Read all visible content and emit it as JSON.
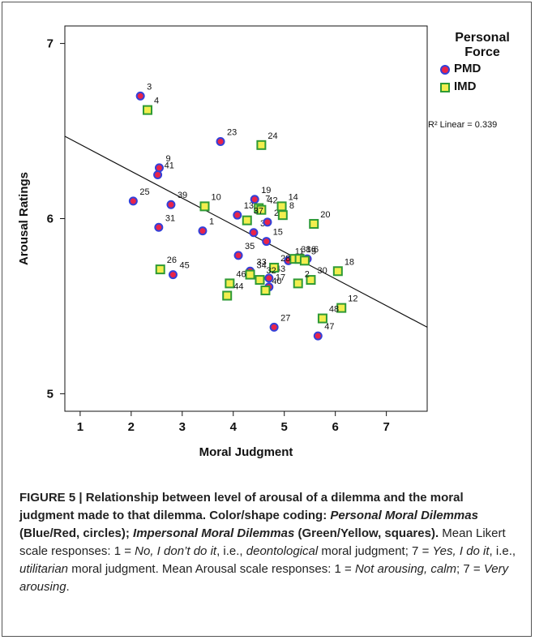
{
  "chart_data": {
    "type": "scatter",
    "xlabel": "Moral Judgment",
    "ylabel": "Arousal Ratings",
    "xlim": [
      0.7,
      7.8
    ],
    "ylim": [
      4.9,
      7.1
    ],
    "x_ticks": [
      "1",
      "2",
      "3",
      "4",
      "5",
      "6",
      "7"
    ],
    "y_ticks": [
      "5",
      "6",
      "7"
    ],
    "grid": false,
    "legend": {
      "title": "Personal Force",
      "position": "right"
    },
    "fit_label": "R² Linear = 0.339",
    "fit_line": {
      "x": [
        0.7,
        7.8
      ],
      "y": [
        6.47,
        5.38
      ]
    },
    "series": [
      {
        "name": "PMD",
        "marker": "circle",
        "color_fill": "#e8244a",
        "color_edge": "#3340d9",
        "points": [
          {
            "id": "3",
            "x": 2.18,
            "y": 6.7
          },
          {
            "id": "9",
            "x": 2.55,
            "y": 6.29
          },
          {
            "id": "41",
            "x": 2.52,
            "y": 6.25
          },
          {
            "id": "39",
            "x": 2.78,
            "y": 6.08
          },
          {
            "id": "25",
            "x": 2.04,
            "y": 6.1
          },
          {
            "id": "31",
            "x": 2.54,
            "y": 5.95
          },
          {
            "id": "45",
            "x": 2.82,
            "y": 5.68
          },
          {
            "id": "1",
            "x": 3.4,
            "y": 5.93
          },
          {
            "id": "23",
            "x": 3.75,
            "y": 6.44
          },
          {
            "id": "13",
            "x": 4.08,
            "y": 6.02
          },
          {
            "id": "19",
            "x": 4.42,
            "y": 6.11
          },
          {
            "id": "36",
            "x": 4.4,
            "y": 5.92
          },
          {
            "id": "29",
            "x": 4.67,
            "y": 5.98
          },
          {
            "id": "15",
            "x": 4.65,
            "y": 5.87
          },
          {
            "id": "35",
            "x": 4.1,
            "y": 5.79
          },
          {
            "id": "33",
            "x": 4.33,
            "y": 5.7
          },
          {
            "id": "43",
            "x": 4.7,
            "y": 5.66
          },
          {
            "id": "17",
            "x": 4.7,
            "y": 5.61
          },
          {
            "id": "11",
            "x": 5.08,
            "y": 5.76
          },
          {
            "id": "27",
            "x": 4.8,
            "y": 5.38
          },
          {
            "id": "6",
            "x": 5.45,
            "y": 5.77
          },
          {
            "id": "47",
            "x": 5.66,
            "y": 5.33
          }
        ]
      },
      {
        "name": "IMD",
        "marker": "square",
        "color_fill": "#f2ee4e",
        "color_edge": "#2e9a35",
        "points": [
          {
            "id": "4",
            "x": 2.32,
            "y": 6.62
          },
          {
            "id": "24",
            "x": 4.55,
            "y": 6.42
          },
          {
            "id": "10",
            "x": 3.44,
            "y": 6.07
          },
          {
            "id": "7",
            "x": 4.5,
            "y": 6.06
          },
          {
            "id": "42",
            "x": 4.55,
            "y": 6.05
          },
          {
            "id": "14",
            "x": 4.95,
            "y": 6.07
          },
          {
            "id": "8",
            "x": 4.97,
            "y": 6.02
          },
          {
            "id": "37",
            "x": 4.27,
            "y": 5.99
          },
          {
            "id": "20",
            "x": 5.58,
            "y": 5.97
          },
          {
            "id": "26",
            "x": 2.57,
            "y": 5.71
          },
          {
            "id": "38",
            "x": 5.2,
            "y": 5.77
          },
          {
            "id": "16",
            "x": 5.3,
            "y": 5.77
          },
          {
            "id": "30",
            "x": 5.52,
            "y": 5.65
          },
          {
            "id": "5",
            "x": 5.4,
            "y": 5.76
          },
          {
            "id": "28",
            "x": 4.8,
            "y": 5.72
          },
          {
            "id": "34",
            "x": 4.33,
            "y": 5.68
          },
          {
            "id": "32",
            "x": 4.52,
            "y": 5.65
          },
          {
            "id": "18",
            "x": 6.05,
            "y": 5.7
          },
          {
            "id": "46",
            "x": 3.93,
            "y": 5.63
          },
          {
            "id": "2",
            "x": 5.27,
            "y": 5.63
          },
          {
            "id": "40",
            "x": 4.63,
            "y": 5.59
          },
          {
            "id": "44",
            "x": 3.88,
            "y": 5.56
          },
          {
            "id": "12",
            "x": 6.12,
            "y": 5.49
          },
          {
            "id": "48",
            "x": 5.75,
            "y": 5.43
          }
        ]
      }
    ]
  },
  "caption": {
    "figure_label": "FIGURE 5 | Relationship between level of arousal of a dilemma and the moral judgment made to that dilemma. Color/shape coding: ",
    "pmd_italic": "Personal Moral Dilemmas",
    "pmd_desc": " (Blue/Red, circles); ",
    "imd_italic": "Impersonal Moral Dilemmas",
    "imd_desc": " (Green/Yellow, squares).",
    "text_a": " Mean Likert scale responses: 1 = ",
    "no_italic": "No, I don’t do it",
    "text_b": ", i.e., ",
    "deont_italic": "deontological",
    "text_c": " moral judgment; 7 = ",
    "yes_italic": "Yes, I do it",
    "text_d": ", i.e., ",
    "util_italic": "utilitarian",
    "text_e": " moral judgment. Mean Arousal scale responses: 1 = ",
    "calm_italic": "Not arousing, calm",
    "text_f": "; 7 = ",
    "very_italic": "Very arousing",
    "text_g": "."
  }
}
